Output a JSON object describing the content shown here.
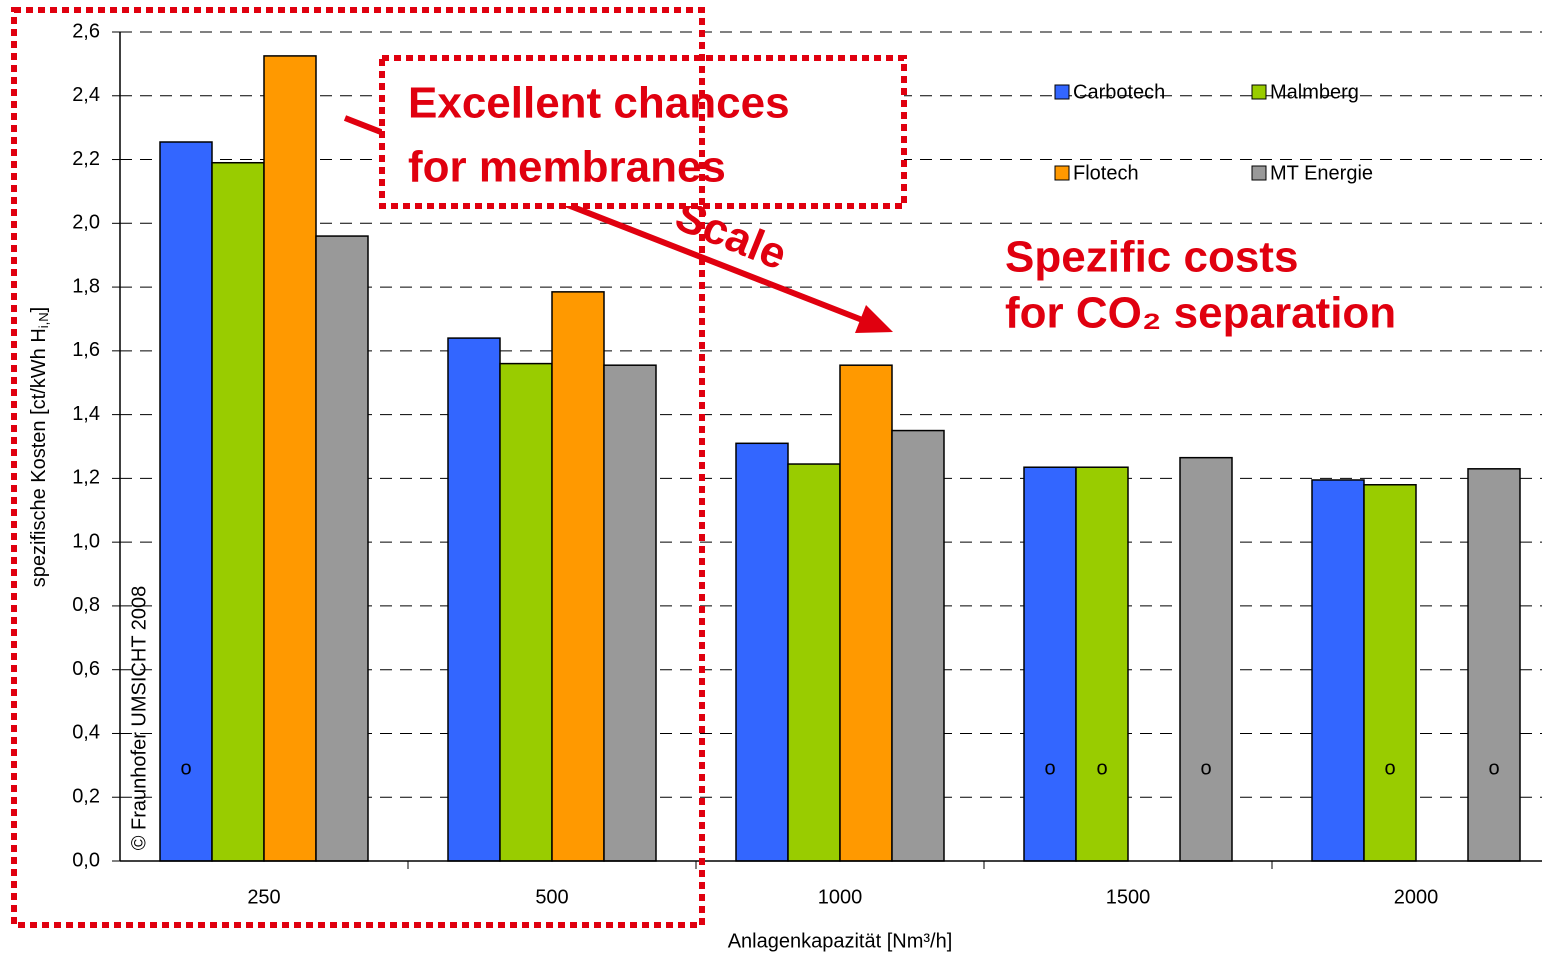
{
  "chart_data": {
    "type": "bar",
    "y_label": "spezifische Kosten [ct/kWh H",
    "y_label_sub": "i,N",
    "y_label_end": "]",
    "x_label": "Anlagenkapazität [Nm³/h]",
    "categories": [
      "250",
      "500",
      "1000",
      "1500",
      "2000"
    ],
    "series": [
      {
        "name": "Carbotech",
        "color": "#3366ff",
        "values": [
          2.255,
          1.64,
          1.31,
          1.235,
          1.195
        ],
        "marked": [
          true,
          false,
          false,
          true,
          false
        ]
      },
      {
        "name": "Malmberg",
        "color": "#99cc00",
        "values": [
          2.19,
          1.56,
          1.245,
          1.235,
          1.18
        ],
        "marked": [
          false,
          false,
          false,
          true,
          true
        ]
      },
      {
        "name": "Flotech",
        "color": "#ff9900",
        "values": [
          2.525,
          1.785,
          1.555,
          null,
          null
        ],
        "marked": [
          false,
          false,
          false,
          false,
          false
        ]
      },
      {
        "name": "MT Energie",
        "color": "#999999",
        "values": [
          1.96,
          1.555,
          1.35,
          1.265,
          1.23
        ],
        "marked": [
          false,
          false,
          false,
          true,
          true
        ]
      }
    ],
    "marker_label": "o",
    "ylim": [
      0,
      2.6
    ],
    "yticks": [
      {
        "value": 0,
        "label": "0,0"
      },
      {
        "value": 0.2,
        "label": "0,2"
      },
      {
        "value": 0.4,
        "label": "0,4"
      },
      {
        "value": 0.6,
        "label": "0,6"
      },
      {
        "value": 0.8,
        "label": "0,8"
      },
      {
        "value": 1.0,
        "label": "1,0"
      },
      {
        "value": 1.2,
        "label": "1,2"
      },
      {
        "value": 1.4,
        "label": "1,4"
      },
      {
        "value": 1.6,
        "label": "1,6"
      },
      {
        "value": 1.8,
        "label": "1,8"
      },
      {
        "value": 2.0,
        "label": "2,0"
      },
      {
        "value": 2.2,
        "label": "2,2"
      },
      {
        "value": 2.4,
        "label": "2,4"
      },
      {
        "value": 2.6,
        "label": "2,6"
      }
    ],
    "grid": true,
    "copyright": "© Fraunhofer UMSICHT 2008",
    "annotations": {
      "box_text": [
        "Excellent chances",
        "for membranes"
      ],
      "arrow_text": "Scale",
      "costs_text": [
        "Spezific costs",
        "for CO₂ separation"
      ]
    }
  }
}
